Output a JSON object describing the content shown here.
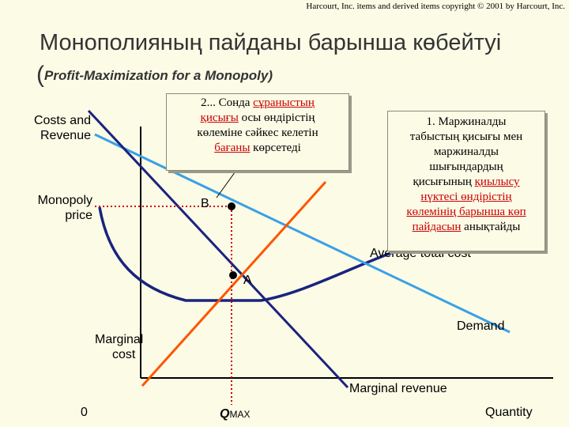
{
  "copyright": "Harcourt, Inc. items and derived items copyright © 2001 by Harcourt, Inc.",
  "title": "Монополияның пайданы барынша көбейтуі",
  "subtitle_paren": "(",
  "subtitle": "Profit-Maximization for a Monopoly)",
  "axis": {
    "y_label_line1": "Costs and",
    "y_label_line2": "Revenue",
    "x_label": "Quantity",
    "origin": "0",
    "qmax_q": "Q",
    "qmax_sub": "MAX"
  },
  "labels": {
    "monopoly_price_line1": "Monopoly",
    "monopoly_price_line2": "price",
    "point_b": "B",
    "point_a": "A",
    "marginal_cost_line1": "Marginal",
    "marginal_cost_line2": "cost",
    "demand": "Demand",
    "marginal_revenue": "Marginal revenue",
    "average_total_cost": "Average total cost"
  },
  "note_left": {
    "l1_a": "2... Сонда ",
    "l1_b": "сұраныстың",
    "l2_a": "қисығы",
    "l2_b": " осы өндірістің",
    "l3": "көлеміне сәйкес келетін",
    "l4_a": "бағаны",
    "l4_b": " көрсетеді"
  },
  "note_right": {
    "l1": "1. Маржиналды",
    "l2": "табыстың қисығы мен",
    "l3": "маржиналды",
    "l4": "шығындардың",
    "l5_a": "қисығының ",
    "l5_b": "қиылысу",
    "l6": "нүктесі өндірістің",
    "l7": "көлемінің барынша көп",
    "l8_a": "пайдасын",
    "l8_b": " анықтайды"
  },
  "colors": {
    "demand": "#3aa0e6",
    "marginal_revenue": "#1a237e",
    "marginal_cost": "#ff5500",
    "average_total_cost": "#1a237e",
    "dotted_guides": "#cc0000",
    "highlight_text": "#cc0000"
  }
}
